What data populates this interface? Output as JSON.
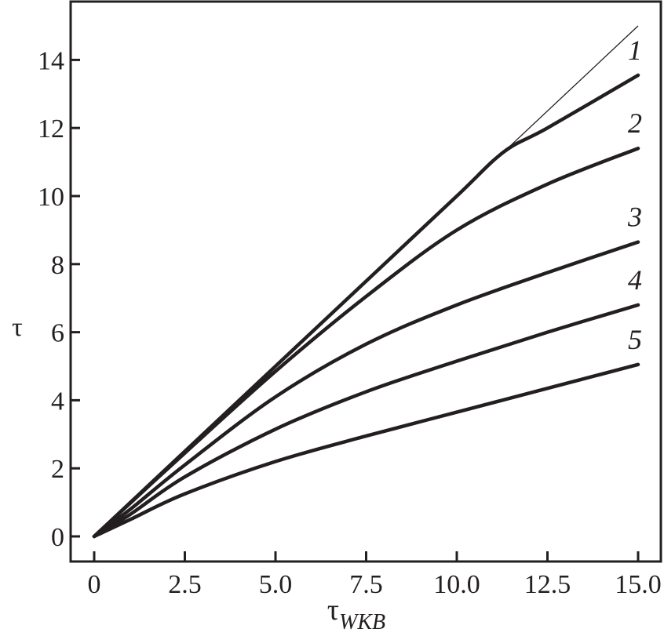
{
  "chart_data": {
    "type": "line",
    "title": "",
    "xlabel": "τ",
    "xlabel_sub": "WKB",
    "ylabel": "τ",
    "xlim": [
      -0.65,
      15.65
    ],
    "ylim": [
      -0.72,
      15.7
    ],
    "xticks": [
      0,
      2.5,
      5.0,
      7.5,
      10.0,
      12.5,
      15.0
    ],
    "xtick_labels": [
      "0",
      "2.5",
      "5.0",
      "7.5",
      "10.0",
      "12.5",
      "15.0"
    ],
    "yticks": [
      0,
      2,
      4,
      6,
      8,
      10,
      12,
      14
    ],
    "ytick_labels": [
      "0",
      "2",
      "4",
      "6",
      "8",
      "10",
      "12",
      "14"
    ],
    "grid": false,
    "reference_line": {
      "x": [
        0,
        15
      ],
      "y": [
        0,
        15
      ]
    },
    "series": [
      {
        "name": "1",
        "x": [
          0,
          2.5,
          5,
          7.5,
          10,
          11.3,
          12.5,
          15
        ],
        "y": [
          0,
          2.5,
          5,
          7.5,
          10,
          11.3,
          12.0,
          13.55
        ]
      },
      {
        "name": "2",
        "x": [
          0,
          2.5,
          5,
          7.5,
          10,
          12.5,
          15
        ],
        "y": [
          0,
          2.45,
          4.85,
          7.05,
          9.0,
          10.35,
          11.4
        ]
      },
      {
        "name": "3",
        "x": [
          0,
          1,
          2.5,
          5,
          7.5,
          10,
          12.5,
          15
        ],
        "y": [
          0,
          0.8,
          2.1,
          4.1,
          5.65,
          6.8,
          7.75,
          8.65
        ]
      },
      {
        "name": "4",
        "x": [
          0,
          1,
          2.5,
          5,
          7.5,
          10,
          12.5,
          15
        ],
        "y": [
          0,
          0.65,
          1.75,
          3.15,
          4.25,
          5.15,
          6.0,
          6.8
        ]
      },
      {
        "name": "5",
        "x": [
          0,
          1,
          2.5,
          5,
          7.5,
          10,
          12.5,
          15
        ],
        "y": [
          0,
          0.5,
          1.25,
          2.2,
          2.95,
          3.65,
          4.35,
          5.05
        ]
      }
    ],
    "colors": {
      "line": "#231f20"
    }
  }
}
